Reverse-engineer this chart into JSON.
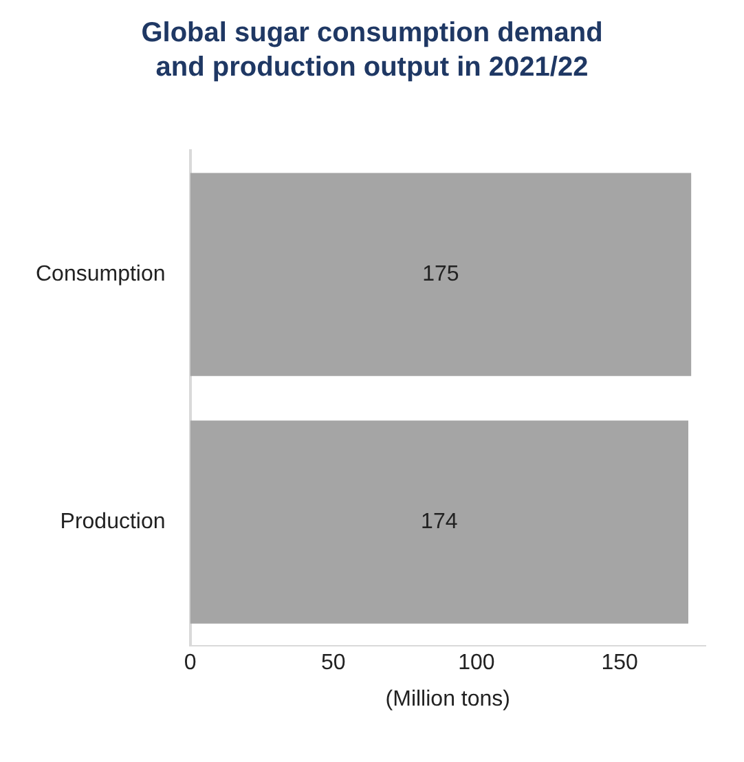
{
  "chart_data": {
    "type": "bar",
    "orientation": "horizontal",
    "title": "Global sugar consumption demand and production output in 2021/22",
    "xlabel": "(Million tons)",
    "categories": [
      "Consumption",
      "Production"
    ],
    "values": [
      175,
      174
    ],
    "color": "#a5a5a5",
    "xlim": [
      0,
      180
    ],
    "xticks": [
      0,
      50,
      100,
      150
    ],
    "data_labels": true,
    "grid": false,
    "legend": false
  }
}
